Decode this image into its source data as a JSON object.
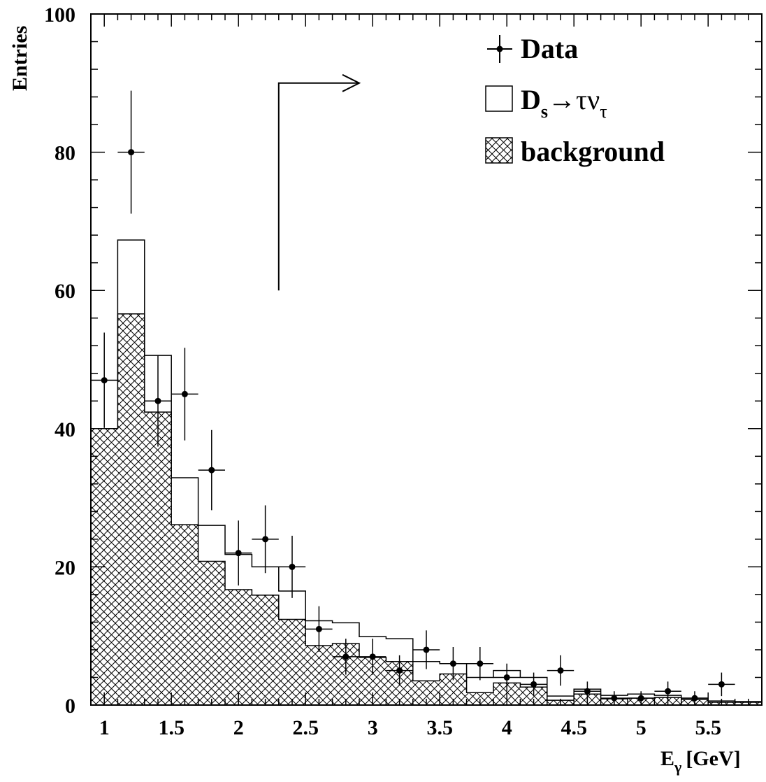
{
  "chart_data": {
    "type": "bar",
    "ylabel": "Entries",
    "xlabel": "E",
    "xlabel_sub": "γ",
    "xlabel_unit": "[GeV]",
    "xlim": [
      0.9,
      5.9
    ],
    "ylim": [
      0,
      100
    ],
    "x_ticks": [
      "1",
      "1.5",
      "2",
      "2.5",
      "3",
      "3.5",
      "4",
      "4.5",
      "5",
      "5.5"
    ],
    "y_ticks": [
      "0",
      "20",
      "40",
      "60",
      "80",
      "100"
    ],
    "bin_edges": [
      0.9,
      1.1,
      1.3,
      1.5,
      1.7,
      1.9,
      2.1,
      2.3,
      2.5,
      2.7,
      2.9,
      3.1,
      3.3,
      3.5,
      3.7,
      3.9,
      4.1,
      4.3,
      4.5,
      4.7,
      4.9,
      5.1,
      5.3,
      5.5,
      5.7,
      5.9
    ],
    "series": [
      {
        "name": "background",
        "style": "hatched",
        "values": [
          40,
          56.6,
          42.4,
          26.1,
          20.8,
          16.7,
          15.9,
          12.4,
          8.6,
          8.9,
          6.9,
          6.3,
          3.5,
          4.5,
          1.8,
          3.2,
          2.6,
          0.7,
          1.6,
          0.9,
          1.0,
          1.1,
          0.8,
          0.4,
          0.4
        ]
      },
      {
        "name": "D_s→τν_τ",
        "style": "outline",
        "values": [
          47,
          67.3,
          50.6,
          32.9,
          26.0,
          21.8,
          20.0,
          16.5,
          12.2,
          11.9,
          9.9,
          9.6,
          6.3,
          6.0,
          4.0,
          5.0,
          4.0,
          1.3,
          2.3,
          1.4,
          1.6,
          1.4,
          1.0,
          0.6,
          0.5
        ]
      }
    ],
    "data_points": {
      "name": "Data",
      "x": [
        1.0,
        1.2,
        1.4,
        1.6,
        1.8,
        2.0,
        2.2,
        2.4,
        2.6,
        2.8,
        3.0,
        3.2,
        3.4,
        3.6,
        3.8,
        4.0,
        4.2,
        4.4,
        4.6,
        4.8,
        5.0,
        5.2,
        5.4,
        5.6
      ],
      "y": [
        47,
        80,
        44,
        45,
        34,
        22,
        24,
        20,
        11,
        7,
        7,
        5,
        8,
        6,
        6,
        4,
        3,
        5,
        2,
        1,
        1,
        2,
        1,
        3
      ],
      "err": [
        6.9,
        8.9,
        6.6,
        6.7,
        5.8,
        4.7,
        4.9,
        4.5,
        3.3,
        2.6,
        2.6,
        2.2,
        2.8,
        2.4,
        2.4,
        2.0,
        1.7,
        2.2,
        1.4,
        1.0,
        1.0,
        1.4,
        1.0,
        1.7
      ]
    },
    "cut_arrow": {
      "x": 2.3,
      "y_bottom": 60,
      "y_top": 90,
      "x_head": 2.9
    },
    "legend": {
      "position": "top-right",
      "data_label": "Data",
      "signal_label_main": "D",
      "signal_label_sub": "s",
      "signal_label_arrow": "→",
      "signal_label_tau": "τν",
      "signal_label_tau_sub": "τ",
      "background_label": "background"
    }
  }
}
